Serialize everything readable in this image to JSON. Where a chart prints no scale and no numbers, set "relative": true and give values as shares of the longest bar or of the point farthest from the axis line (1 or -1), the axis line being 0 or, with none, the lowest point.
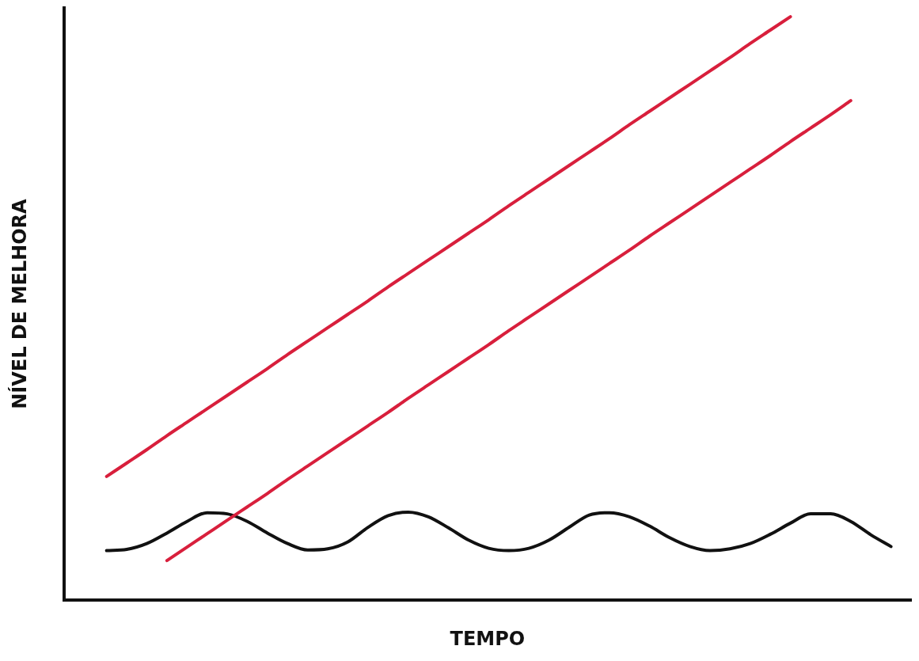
{
  "chart_data": {
    "type": "line",
    "xlabel": "TEMPO",
    "ylabel": "NÍVEL DE MELHORA",
    "relative": true,
    "legend": false,
    "grid": false,
    "marker": "none",
    "line_style": "solid",
    "categories": [
      null,
      null,
      null,
      null,
      null,
      null,
      null,
      null,
      null,
      null,
      null,
      null,
      null,
      null,
      null,
      null,
      null,
      null,
      null,
      null,
      null,
      null,
      null,
      null,
      null,
      null,
      null,
      null,
      null,
      null,
      null,
      null,
      null,
      null,
      null,
      null,
      null,
      null,
      null,
      null
    ],
    "series": [
      {
        "color": "#d81f3c",
        "values": [
          0.212,
          0.235,
          0.258,
          0.282,
          0.305,
          0.328,
          0.351,
          0.374,
          0.397,
          0.421,
          0.444,
          0.467,
          0.49,
          0.513,
          0.537,
          0.56,
          0.583,
          0.606,
          0.629,
          0.652,
          0.676,
          0.699,
          0.722,
          0.745,
          0.768,
          0.791,
          0.815,
          0.838,
          0.861,
          0.884,
          0.907,
          0.93,
          0.954,
          0.977,
          1.0,
          null,
          null,
          null,
          null,
          null
        ]
      },
      {
        "color": "#d81f3c",
        "values": [
          null,
          null,
          null,
          0.068,
          0.091,
          0.114,
          0.137,
          0.16,
          0.183,
          0.207,
          0.23,
          0.253,
          0.276,
          0.299,
          0.322,
          0.346,
          0.369,
          0.392,
          0.415,
          0.438,
          0.462,
          0.485,
          0.508,
          0.531,
          0.554,
          0.577,
          0.6,
          0.624,
          0.647,
          0.67,
          0.693,
          0.716,
          0.739,
          0.762,
          0.786,
          0.809,
          0.832,
          0.856,
          null,
          null
        ]
      },
      {
        "color": "#111111",
        "values": [
          0.085,
          0.087,
          0.097,
          0.115,
          0.135,
          0.15,
          0.148,
          0.135,
          0.115,
          0.097,
          0.086,
          0.088,
          0.1,
          0.125,
          0.145,
          0.151,
          0.143,
          0.124,
          0.103,
          0.089,
          0.085,
          0.089,
          0.103,
          0.125,
          0.146,
          0.15,
          0.143,
          0.127,
          0.107,
          0.092,
          0.085,
          0.088,
          0.097,
          0.113,
          0.132,
          0.148,
          0.148,
          0.135,
          0.112,
          0.092
        ]
      }
    ]
  }
}
